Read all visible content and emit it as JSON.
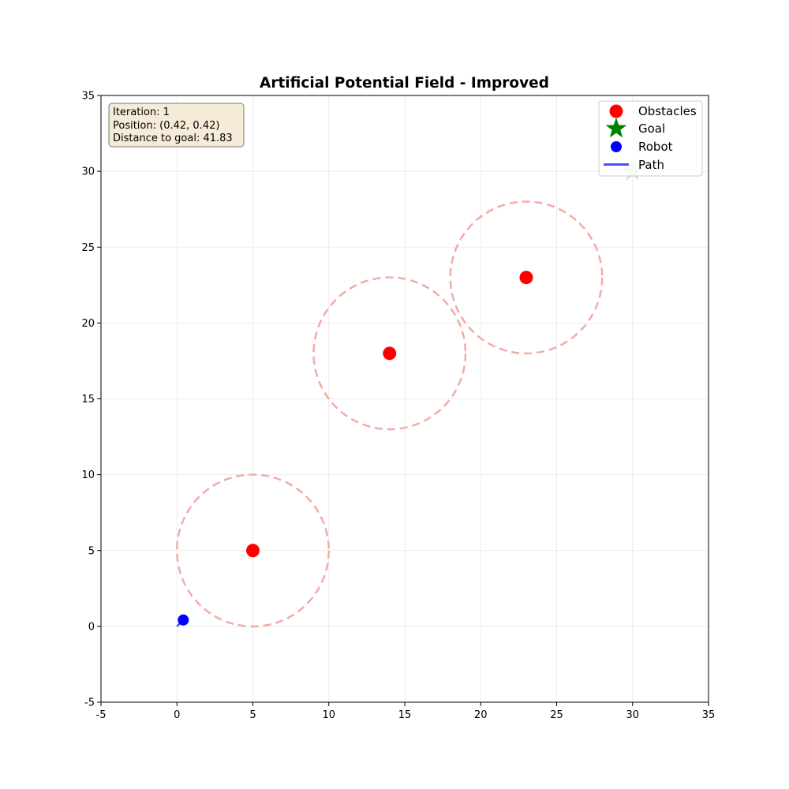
{
  "chart_data": {
    "type": "scatter",
    "title": "Artificial Potential Field - Improved",
    "xlabel": "",
    "ylabel": "",
    "xlim": [
      -5,
      35
    ],
    "ylim": [
      -5,
      35
    ],
    "xticks": [
      -5,
      0,
      5,
      10,
      15,
      20,
      25,
      30,
      35
    ],
    "yticks": [
      -5,
      0,
      5,
      10,
      15,
      20,
      25,
      30,
      35
    ],
    "grid": true,
    "legend_position": "top-right",
    "obstacles": [
      {
        "x": 5,
        "y": 5,
        "influence_radius": 5
      },
      {
        "x": 14,
        "y": 18,
        "influence_radius": 5
      },
      {
        "x": 23,
        "y": 23,
        "influence_radius": 5
      }
    ],
    "goal": {
      "x": 30,
      "y": 30
    },
    "robot": {
      "x": 0.42,
      "y": 0.42
    },
    "path": [
      [
        0,
        0
      ],
      [
        0.42,
        0.42
      ]
    ],
    "legend": [
      {
        "label": "Obstacles",
        "marker": "circle",
        "color": "#ff0000"
      },
      {
        "label": "Goal",
        "marker": "star",
        "color": "#008000"
      },
      {
        "label": "Robot",
        "marker": "circle",
        "color": "#0000ff"
      },
      {
        "label": "Path",
        "marker": "line",
        "color": "#4d4dff"
      }
    ],
    "info_box": [
      "Iteration: 1",
      "Position: (0.42, 0.42)",
      "Distance to goal: 41.83"
    ],
    "colors": {
      "obstacle": "#ff0000",
      "influence": "#f4aaa6",
      "goal": "#008000",
      "robot": "#0000ff",
      "path": "#4d4dff",
      "grid": "#e6e6e6",
      "info_bg": "#f5ebd7",
      "info_border": "#7a7a7a"
    }
  }
}
